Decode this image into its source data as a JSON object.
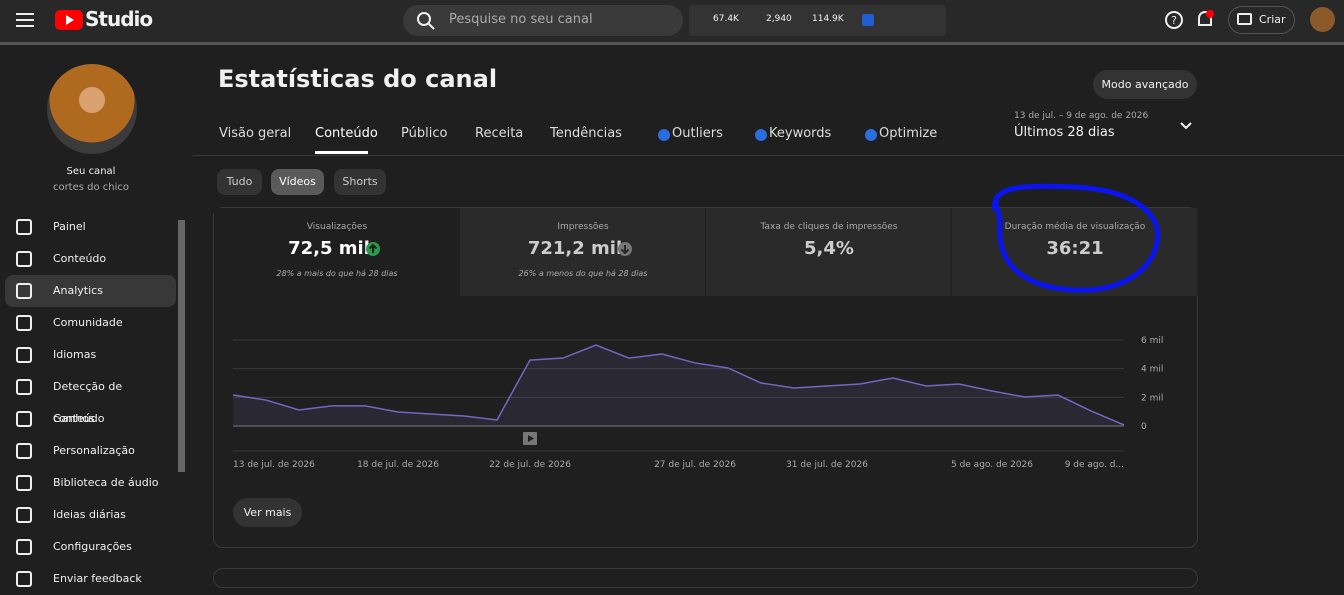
{
  "header": {
    "logo": "Studio",
    "search_placeholder": "Pesquise no seu canal",
    "stats": [
      "67.4K",
      "2,940",
      "114.9K"
    ],
    "create": "Criar"
  },
  "channel": {
    "label": "Seu canal",
    "name": "cortes do chico"
  },
  "nav": [
    "Painel",
    "Conteúdo",
    "Analytics",
    "Comunidade",
    "Idiomas",
    "Detecção de conteúdo",
    "Ganhos",
    "Personalização",
    "Biblioteca de áudio",
    "Ideias diárias",
    "Configurações",
    "Enviar feedback"
  ],
  "page": {
    "title": "Estatísticas do canal",
    "advanced": "Modo avançado",
    "tabs": [
      "Visão geral",
      "Conteúdo",
      "Público",
      "Receita",
      "Tendências",
      "Outliers",
      "Keywords",
      "Optimize"
    ],
    "date_range": "13 de jul. – 9 de ago. de 2026",
    "period": "Últimos 28 dias",
    "filters": [
      "Tudo",
      "Vídeos",
      "Shorts"
    ],
    "metrics": [
      {
        "label": "Visualizações",
        "value": "72,5 mil",
        "note": "28% a mais do que há 28 dias"
      },
      {
        "label": "Impressões",
        "value": "721,2 mil",
        "note": "26% a menos do que há 28 dias"
      },
      {
        "label": "Taxa de cliques de impressões",
        "value": "5,4%"
      },
      {
        "label": "Duração média de visualização",
        "value": "36:21"
      }
    ],
    "more": "Ver mais"
  },
  "chart_data": {
    "type": "line",
    "categories": [
      "13 de jul. de 2026",
      null,
      null,
      null,
      null,
      "18 de jul. de 2026",
      null,
      null,
      null,
      "22 de jul. de 2026",
      null,
      null,
      null,
      null,
      "27 de jul. de 2026",
      null,
      null,
      null,
      "31 de jul. de 2026",
      null,
      null,
      null,
      null,
      "5 de ago. de 2026",
      null,
      null,
      null,
      "9 de ago. d..."
    ],
    "values": [
      2160,
      1810,
      1120,
      1400,
      1400,
      980,
      840,
      700,
      420,
      4600,
      4740,
      5650,
      4740,
      5020,
      4400,
      4050,
      3000,
      2650,
      2790,
      2930,
      3350,
      2790,
      2930,
      2440,
      2020,
      2160,
      1050,
      70
    ],
    "color": "#7467c2",
    "ylim": [
      0,
      6000
    ],
    "yticks": [
      {
        "value": 0,
        "label": "0"
      },
      {
        "value": 2000,
        "label": "2 mil"
      },
      {
        "value": 4000,
        "label": "4 mil"
      },
      {
        "value": 6000,
        "label": "6 mil"
      }
    ],
    "grid": true
  }
}
